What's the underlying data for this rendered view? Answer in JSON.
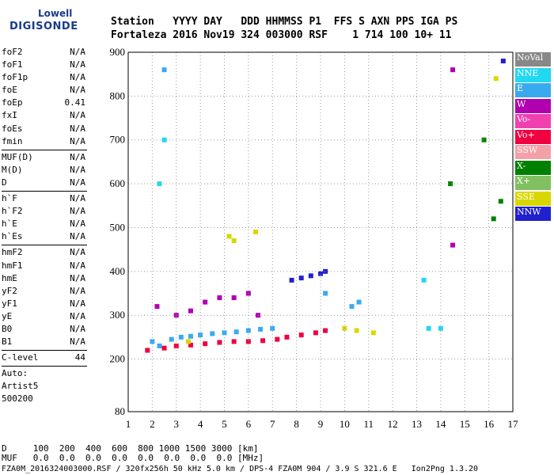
{
  "logo": {
    "top": "Lowell",
    "main": "DIGISONDE"
  },
  "header": {
    "line1": "Station   YYYY DAY   DDD HHMMSS P1  FFS S AXN PPS IGA PS",
    "line2": "Fortaleza 2016 Nov19 324 003000 RSF    1 714 100 10+ 11"
  },
  "params": [
    {
      "name": "foF2",
      "value": "N/A"
    },
    {
      "name": "foF1",
      "value": "N/A"
    },
    {
      "name": "foF1p",
      "value": "N/A"
    },
    {
      "name": "foE",
      "value": "N/A"
    },
    {
      "name": "foEp",
      "value": "0.41"
    },
    {
      "name": "fxI",
      "value": "N/A"
    },
    {
      "name": "foEs",
      "value": "N/A"
    },
    {
      "name": "fmin",
      "value": "N/A"
    }
  ],
  "params2": [
    {
      "name": "MUF(D)",
      "value": "N/A"
    },
    {
      "name": "M(D)",
      "value": "N/A"
    },
    {
      "name": "D",
      "value": "N/A"
    }
  ],
  "params3": [
    {
      "name": "h`F",
      "value": "N/A"
    },
    {
      "name": "h`F2",
      "value": "N/A"
    },
    {
      "name": "h`E",
      "value": "N/A"
    },
    {
      "name": "h`Es",
      "value": "N/A"
    }
  ],
  "params4": [
    {
      "name": "hmF2",
      "value": "N/A"
    },
    {
      "name": "hmF1",
      "value": "N/A"
    },
    {
      "name": "hmE",
      "value": "N/A"
    },
    {
      "name": "yF2",
      "value": "N/A"
    },
    {
      "name": "yF1",
      "value": "N/A"
    },
    {
      "name": "yE",
      "value": "N/A"
    },
    {
      "name": "B0",
      "value": "N/A"
    },
    {
      "name": "B1",
      "value": "N/A"
    }
  ],
  "clevel": {
    "name": "C-level",
    "value": "44"
  },
  "auto": {
    "line1": "Auto:",
    "line2": "Artist5",
    "line3": "500200"
  },
  "footer": {
    "d_row": "D     100  200  400  600  800 1000 1500 3000 [km]",
    "muf_row": "MUF   0.0  0.0  0.0  0.0  0.0  0.0  0.0  0.0 [MHz]",
    "info": "FZA0M_2016324003000.RSF / 320fx256h 50 kHz 5.0 km / DPS-4 FZA0M 904 / 3.9 S 321.6 E   Ion2Png 1.3.20"
  },
  "legend": [
    {
      "label": "NoVal",
      "color": "#888888"
    },
    {
      "label": "NNE",
      "color": "#22d8f0"
    },
    {
      "label": "E",
      "color": "#3aaaf0"
    },
    {
      "label": "W",
      "color": "#b000b0"
    },
    {
      "label": "Vo-",
      "color": "#f040b0"
    },
    {
      "label": "Vo+",
      "color": "#f00040"
    },
    {
      "label": "SSW",
      "color": "#f4a0a8"
    },
    {
      "label": "X-",
      "color": "#008000"
    },
    {
      "label": "X+",
      "color": "#80c060"
    },
    {
      "label": "SSE",
      "color": "#d8d800"
    },
    {
      "label": "NNW",
      "color": "#2020d0"
    }
  ],
  "chart_data": {
    "type": "scatter",
    "xlim": [
      1,
      17
    ],
    "ylim": [
      80,
      900
    ],
    "x_ticks": [
      1,
      2,
      3,
      4,
      5,
      6,
      7,
      8,
      9,
      10,
      11,
      12,
      13,
      14,
      15,
      16,
      17
    ],
    "y_ticks": [
      80,
      200,
      300,
      400,
      500,
      600,
      700,
      800,
      900
    ],
    "grid": "dotted",
    "legend_placement": "right",
    "series": [
      {
        "name": "Vo+",
        "x": [
          1.8,
          2.5,
          3.0,
          3.6,
          4.2,
          4.8,
          5.4,
          6.0,
          6.6,
          7.2,
          7.6,
          8.2,
          8.8,
          9.2
        ],
        "y": [
          220,
          225,
          230,
          232,
          235,
          238,
          240,
          240,
          242,
          245,
          250,
          255,
          260,
          265
        ]
      },
      {
        "name": "E",
        "x": [
          2.0,
          2.3,
          2.5,
          2.8,
          3.2,
          3.6,
          4.0,
          4.5,
          5.0,
          5.5,
          6.0,
          6.5,
          7.0,
          9.2,
          10.3,
          10.6
        ],
        "y": [
          240,
          230,
          860,
          245,
          250,
          252,
          255,
          258,
          260,
          262,
          265,
          268,
          270,
          350,
          320,
          330
        ]
      },
      {
        "name": "W",
        "x": [
          2.2,
          3.0,
          3.6,
          4.2,
          4.8,
          5.4,
          6.0,
          6.4,
          14.5,
          14.5
        ],
        "y": [
          320,
          300,
          310,
          330,
          340,
          340,
          350,
          300,
          860,
          460
        ]
      },
      {
        "name": "NNW",
        "x": [
          7.8,
          8.2,
          8.6,
          9.0,
          9.2,
          16.6
        ],
        "y": [
          380,
          385,
          390,
          395,
          400,
          880
        ]
      },
      {
        "name": "SSE",
        "x": [
          3.5,
          5.2,
          5.4,
          6.3,
          10.0,
          10.5,
          11.2,
          16.3
        ],
        "y": [
          240,
          480,
          470,
          490,
          270,
          265,
          260,
          840
        ]
      },
      {
        "name": "NNE",
        "x": [
          2.5,
          2.3,
          13.3,
          13.5,
          14.0
        ],
        "y": [
          700,
          600,
          380,
          270,
          270
        ]
      },
      {
        "name": "X-",
        "x": [
          14.4,
          15.8,
          16.2,
          16.5
        ],
        "y": [
          600,
          700,
          520,
          560
        ]
      }
    ]
  }
}
